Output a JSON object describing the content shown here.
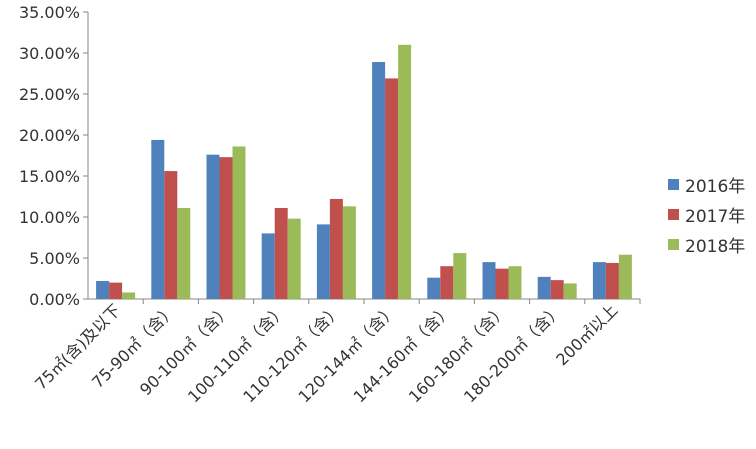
{
  "chart_data": {
    "type": "bar",
    "title": "",
    "xlabel": "",
    "ylabel": "",
    "ylim": [
      0,
      35
    ],
    "y_ticks": [
      "0.00%",
      "5.00%",
      "10.00%",
      "15.00%",
      "20.00%",
      "25.00%",
      "30.00%",
      "35.00%"
    ],
    "categories": [
      "75㎡(含)及以下",
      "75-90㎡（含）",
      "90-100㎡（含）",
      "100-110㎡（含）",
      "110-120㎡（含）",
      "120-144㎡（含）",
      "144-160㎡（含）",
      "160-180㎡（含）",
      "180-200㎡（含）",
      "200㎡以上"
    ],
    "series": [
      {
        "name": "2016年",
        "color": "#4f81bd",
        "values": [
          2.2,
          19.4,
          17.6,
          8.0,
          9.1,
          28.9,
          2.6,
          4.5,
          2.7,
          4.5
        ]
      },
      {
        "name": "2017年",
        "color": "#c0504d",
        "values": [
          2.0,
          15.6,
          17.3,
          11.1,
          12.2,
          26.9,
          4.0,
          3.7,
          2.3,
          4.4
        ]
      },
      {
        "name": "2018年",
        "color": "#9bbb59",
        "values": [
          0.8,
          11.1,
          18.6,
          9.8,
          11.3,
          31.0,
          5.6,
          4.0,
          1.9,
          5.4
        ]
      }
    ],
    "grid": false,
    "legend_position": "right"
  }
}
